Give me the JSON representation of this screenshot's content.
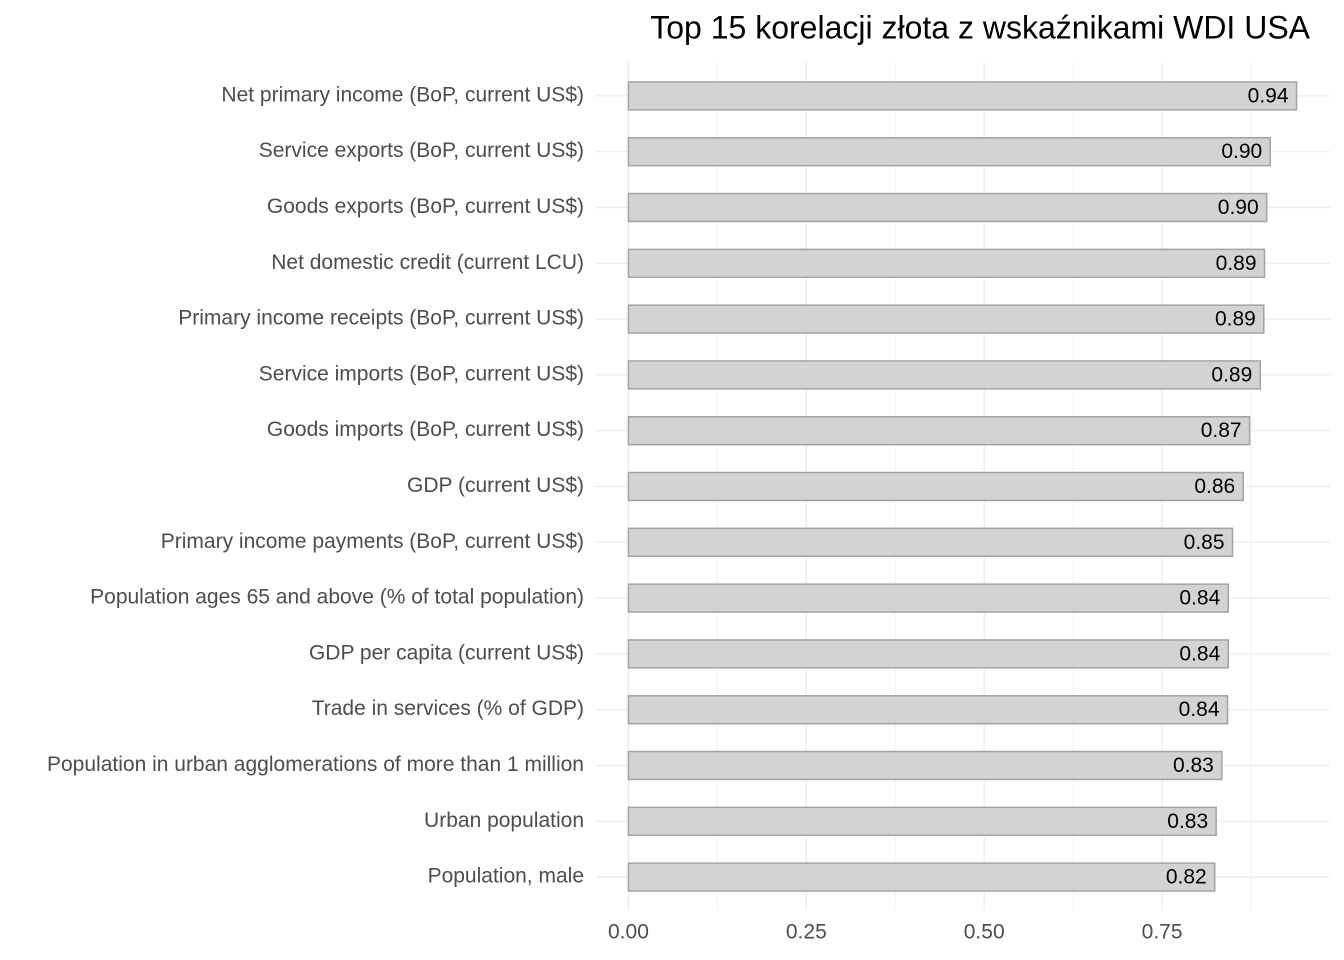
{
  "chart_data": {
    "type": "hbar",
    "title": "Top 15 korelacji złota z wskaźnikami WDI USA",
    "categories": [
      "Net primary income (BoP, current US$)",
      "Service exports (BoP, current US$)",
      "Goods exports (BoP, current US$)",
      "Net domestic credit (current LCU)",
      "Primary income receipts (BoP, current US$)",
      "Service imports (BoP, current US$)",
      "Goods imports (BoP, current US$)",
      "GDP (current US$)",
      "Primary income payments (BoP, current US$)",
      "Population ages 65 and above (% of total population)",
      "GDP per capita (current US$)",
      "Trade in services (% of GDP)",
      "Population in urban agglomerations of more than 1 million",
      "Urban population",
      "Population, male"
    ],
    "values": [
      0.939,
      0.902,
      0.897,
      0.894,
      0.893,
      0.888,
      0.873,
      0.864,
      0.849,
      0.843,
      0.843,
      0.842,
      0.834,
      0.826,
      0.824
    ],
    "value_labels": [
      "0.94",
      "0.90",
      "0.90",
      "0.89",
      "0.89",
      "0.89",
      "0.87",
      "0.86",
      "0.85",
      "0.84",
      "0.84",
      "0.84",
      "0.83",
      "0.83",
      "0.82"
    ],
    "color": "#d3d3d3",
    "border_color": "#a3a3a3",
    "xlim": [
      -0.047,
      0.986
    ],
    "xticks": [
      {
        "value": 0,
        "label": "0.00"
      },
      {
        "value": 0.25,
        "label": "0.25"
      },
      {
        "value": 0.5,
        "label": "0.50"
      },
      {
        "value": 0.75,
        "label": "0.75"
      }
    ],
    "xminorticks": [
      0.125,
      0.375,
      0.625,
      0.875
    ],
    "grid": true
  }
}
